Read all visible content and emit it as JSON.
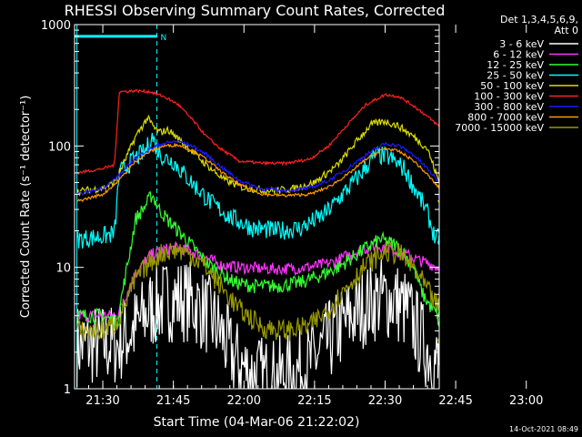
{
  "chart_data": {
    "type": "line",
    "title": "RHESSI Observing Summary Count Rates, Corrected",
    "xlabel": "Start Time (04-Mar-06 21:22:02)",
    "ylabel": "Corrected Count Rate (s⁻¹ detector⁻¹)",
    "y_scale": "log",
    "ylim": [
      1,
      1000
    ],
    "xlim_minutes": [
      22.0,
      99.5
    ],
    "x_ticks": [
      {
        "m": 28,
        "label": "21:30"
      },
      {
        "m": 43,
        "label": "21:45"
      },
      {
        "m": 58,
        "label": "22:00"
      },
      {
        "m": 73,
        "label": "22:15"
      },
      {
        "m": 88,
        "label": "22:30"
      },
      {
        "m": 103,
        "label": "22:45"
      },
      {
        "m": 118,
        "label": "23:00"
      }
    ],
    "y_ticks": [
      {
        "v": 1,
        "label": "1"
      },
      {
        "v": 10,
        "label": "10"
      },
      {
        "v": 100,
        "label": "100"
      },
      {
        "v": 1000,
        "label": "1000"
      }
    ],
    "legend_header": [
      "Det 1,3,4,5,6,9,",
      "Att 0"
    ],
    "legend_placement": "right",
    "annotation_label": "N",
    "footer_timestamp": "14-Oct-2021 08:49",
    "day_intervals_minutes": [
      [
        22.0,
        39.5
      ],
      [
        103.0,
        117.5
      ]
    ],
    "night_markers_minutes": [
      39.5,
      117.5
    ],
    "daylight_bar_level": 800,
    "attenuator_edges_minutes": [
      22.5,
      102.5
    ],
    "series": [
      {
        "name": "3 - 6 keV",
        "color": "#ffffff",
        "x": [
          22.5,
          31,
          35,
          38,
          41,
          44,
          47,
          50,
          53,
          55,
          57,
          60,
          64,
          68,
          72,
          75,
          78,
          81,
          84,
          87,
          90,
          93,
          96,
          99.5
        ],
        "y": [
          2.3,
          2.3,
          3.2,
          4.5,
          5.2,
          5.5,
          5.2,
          4.2,
          3.0,
          2.0,
          1.6,
          1.3,
          1.2,
          1.3,
          1.6,
          2.2,
          3.0,
          4.0,
          5.0,
          5.6,
          5.4,
          4.2,
          2.4,
          1.5
        ]
      },
      {
        "name": "6 - 12 keV",
        "color": "#ff33ff",
        "x": [
          22.5,
          31,
          35,
          38,
          41,
          44,
          47,
          50,
          53,
          57,
          61,
          65,
          69,
          73,
          77,
          80,
          83,
          86,
          89,
          92,
          95,
          98,
          99.5
        ],
        "y": [
          4.0,
          4.0,
          9.0,
          12.5,
          14.0,
          14.5,
          13.5,
          12.0,
          10.5,
          10.0,
          9.8,
          9.7,
          9.8,
          10.2,
          11.0,
          12.5,
          14.0,
          15.0,
          14.5,
          13.0,
          11.5,
          10.5,
          10.0
        ]
      },
      {
        "name": "12 - 25 keV",
        "color": "#33ff33",
        "x": [
          22.5,
          28,
          31,
          35,
          37,
          38.5,
          40,
          42,
          44,
          47,
          50,
          53,
          56,
          60,
          65,
          70,
          74,
          78,
          81,
          84,
          87,
          90,
          92,
          94,
          96,
          98,
          99.5
        ],
        "y": [
          4.0,
          4.0,
          3.5,
          25,
          32,
          40,
          30,
          24,
          20,
          15,
          11.0,
          9.0,
          7.5,
          7.0,
          7.0,
          7.5,
          8.5,
          10.0,
          12.0,
          14.5,
          17.0,
          15.5,
          13.0,
          10.0,
          6.0,
          4.5,
          4.0
        ]
      },
      {
        "name": "25 - 50 keV",
        "color": "#00ffff",
        "x": [
          22.5,
          28,
          30.5,
          31.5,
          35,
          37,
          38.5,
          39.5,
          41,
          43,
          45,
          48,
          51,
          55,
          60,
          65,
          70,
          75,
          79,
          83,
          86,
          89,
          92,
          95,
          97,
          98.5,
          99.5
        ],
        "y": [
          17,
          18,
          19,
          60,
          80,
          90,
          120,
          95,
          80,
          75,
          60,
          45,
          34,
          26,
          21,
          20,
          21,
          27,
          40,
          60,
          85,
          80,
          65,
          40,
          28,
          18,
          17
        ]
      },
      {
        "name": "50 - 100 keV",
        "color": "#dddd00",
        "x": [
          22.5,
          28,
          30.5,
          31.5,
          35,
          37.5,
          39,
          40,
          42,
          44,
          47,
          50,
          54,
          58,
          63,
          68,
          73,
          78,
          82,
          85,
          88,
          91,
          94,
          97,
          99.5
        ],
        "y": [
          42,
          45,
          50,
          60,
          120,
          170,
          140,
          130,
          135,
          115,
          90,
          70,
          52,
          45,
          43,
          44,
          50,
          70,
          110,
          150,
          160,
          145,
          120,
          95,
          50
        ]
      },
      {
        "name": "100 - 300 keV",
        "color": "#ff2020",
        "x": [
          22.5,
          28,
          30.5,
          31.5,
          35,
          38,
          41,
          44,
          47,
          50,
          53,
          57,
          62,
          67,
          72,
          76,
          80,
          84,
          88,
          91,
          94,
          97,
          99.5
        ],
        "y": [
          60,
          65,
          70,
          280,
          285,
          280,
          255,
          220,
          165,
          120,
          95,
          75,
          72,
          72,
          78,
          100,
          150,
          220,
          265,
          255,
          215,
          175,
          145
        ]
      },
      {
        "name": "300 - 800 keV",
        "color": "#1a1aff",
        "x": [
          22.5,
          28,
          31,
          35,
          38,
          41,
          44,
          47,
          50,
          53,
          57,
          62,
          67,
          72,
          76,
          80,
          84,
          88,
          91,
          94,
          97,
          99.5
        ],
        "y": [
          40,
          45,
          55,
          80,
          95,
          105,
          110,
          100,
          85,
          68,
          52,
          44,
          43,
          45,
          52,
          65,
          85,
          105,
          100,
          85,
          65,
          50
        ]
      },
      {
        "name": "800 - 7000 keV",
        "color": "#ff9900",
        "x": [
          22.5,
          28,
          31,
          35,
          38,
          41,
          44,
          47,
          50,
          53,
          57,
          62,
          67,
          72,
          76,
          80,
          84,
          88,
          91,
          94,
          97,
          99.5
        ],
        "y": [
          35,
          40,
          50,
          75,
          90,
          100,
          102,
          92,
          78,
          62,
          48,
          40,
          39,
          40,
          46,
          58,
          78,
          96,
          90,
          76,
          58,
          45
        ]
      },
      {
        "name": "7000 - 15000 keV",
        "color": "#999900",
        "x": [
          22.5,
          28,
          31,
          35,
          38,
          41,
          44,
          47,
          50,
          53,
          57,
          62,
          67,
          72,
          76,
          80,
          84,
          88,
          91,
          94,
          97,
          99.5
        ],
        "y": [
          3.0,
          3.0,
          3.5,
          8.0,
          11.0,
          13.5,
          14.0,
          12.5,
          10.0,
          7.0,
          4.5,
          3.2,
          3.0,
          3.3,
          4.5,
          7.0,
          10.5,
          13.5,
          13.0,
          10.0,
          6.5,
          4.5
        ]
      }
    ],
    "after_attenuator": [
      {
        "name": "3 - 6 keV",
        "y": 1.5
      },
      {
        "name": "6 - 12 keV",
        "y": null
      },
      {
        "name": "12 - 25 keV",
        "y": 3.5
      },
      {
        "name": "25 - 50 keV",
        "y": 17
      },
      {
        "name": "50 - 100 keV",
        "y": null
      },
      {
        "name": "100 - 300 keV",
        "y": 60
      },
      {
        "name": "300 - 800 keV",
        "y": 39
      },
      {
        "name": "800 - 7000 keV",
        "y": 35
      },
      {
        "name": "7000 - 15000 keV",
        "y": 2.5
      }
    ],
    "grid": false
  }
}
